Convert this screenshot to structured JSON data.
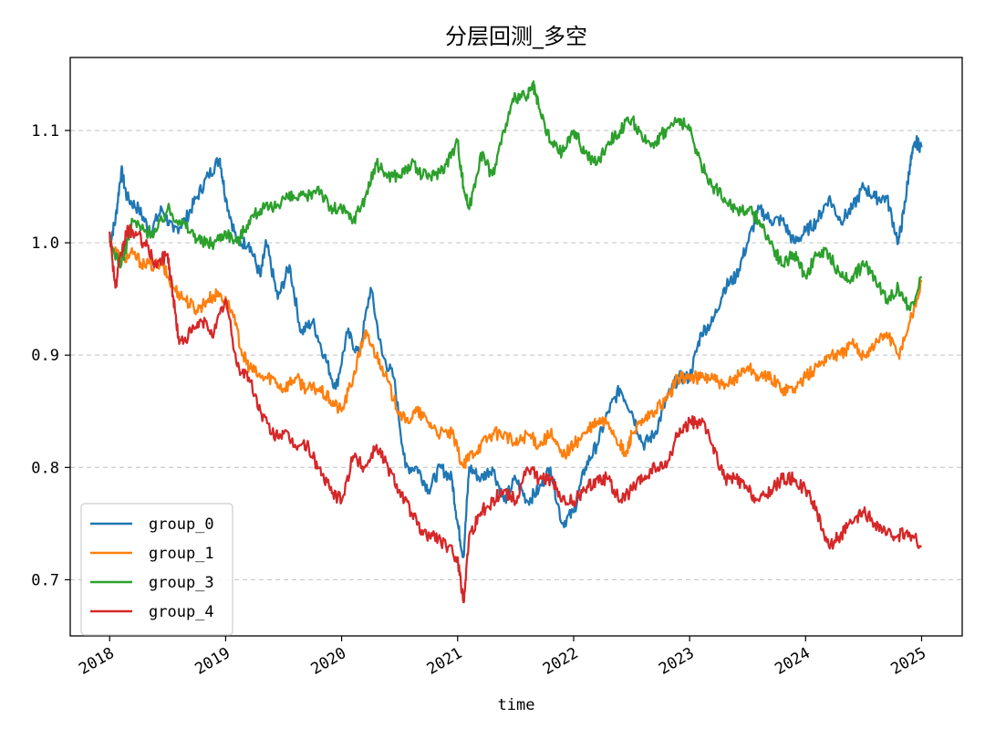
{
  "chart_data": {
    "type": "line",
    "title": "分层回测_多空",
    "xlabel": "time",
    "ylabel": "",
    "xlim": [
      2017.66,
      2025.35
    ],
    "ylim": [
      0.65,
      1.165
    ],
    "x_ticks": [
      2018,
      2019,
      2020,
      2021,
      2022,
      2023,
      2024,
      2025
    ],
    "x_tick_labels": [
      "2018",
      "2019",
      "2020",
      "2021",
      "2022",
      "2023",
      "2024",
      "2025"
    ],
    "y_ticks": [
      0.7,
      0.8,
      0.9,
      1.0,
      1.1
    ],
    "y_tick_labels": [
      "0.7",
      "0.8",
      "0.9",
      "1.0",
      "1.1"
    ],
    "grid": "horizontal-dashed",
    "legend_position": "lower-left",
    "series": [
      {
        "name": "group_0",
        "color": "#1f77b4",
        "x": [
          2018.0,
          2018.05,
          2018.1,
          2018.15,
          2018.25,
          2018.35,
          2018.45,
          2018.55,
          2018.65,
          2018.75,
          2018.85,
          2018.95,
          2019.0,
          2019.1,
          2019.2,
          2019.3,
          2019.35,
          2019.45,
          2019.55,
          2019.65,
          2019.75,
          2019.85,
          2019.95,
          2020.05,
          2020.15,
          2020.25,
          2020.35,
          2020.45,
          2020.55,
          2020.65,
          2020.75,
          2020.85,
          2020.95,
          2021.0,
          2021.05,
          2021.1,
          2021.2,
          2021.3,
          2021.4,
          2021.5,
          2021.6,
          2021.7,
          2021.8,
          2021.9,
          2022.0,
          2022.1,
          2022.2,
          2022.3,
          2022.4,
          2022.5,
          2022.6,
          2022.7,
          2022.8,
          2022.9,
          2023.0,
          2023.1,
          2023.2,
          2023.3,
          2023.4,
          2023.5,
          2023.6,
          2023.7,
          2023.8,
          2023.9,
          2024.0,
          2024.1,
          2024.2,
          2024.3,
          2024.4,
          2024.5,
          2024.6,
          2024.7,
          2024.8,
          2024.85,
          2024.9,
          2024.95,
          2025.0
        ],
        "values": [
          1.0,
          1.02,
          1.065,
          1.04,
          1.03,
          1.01,
          1.03,
          1.01,
          1.02,
          1.04,
          1.06,
          1.075,
          1.04,
          1.0,
          1.0,
          0.97,
          1.0,
          0.95,
          0.98,
          0.92,
          0.93,
          0.9,
          0.87,
          0.92,
          0.9,
          0.96,
          0.9,
          0.88,
          0.8,
          0.8,
          0.78,
          0.8,
          0.79,
          0.75,
          0.72,
          0.8,
          0.79,
          0.8,
          0.77,
          0.79,
          0.77,
          0.78,
          0.8,
          0.75,
          0.76,
          0.8,
          0.82,
          0.85,
          0.87,
          0.85,
          0.82,
          0.83,
          0.86,
          0.88,
          0.88,
          0.92,
          0.93,
          0.96,
          0.97,
          1.0,
          1.03,
          1.02,
          1.02,
          1.0,
          1.01,
          1.02,
          1.04,
          1.02,
          1.03,
          1.05,
          1.04,
          1.04,
          1.0,
          1.03,
          1.07,
          1.09,
          1.085
        ]
      },
      {
        "name": "group_1",
        "color": "#ff7f0e",
        "x": [
          2018.0,
          2018.1,
          2018.2,
          2018.3,
          2018.45,
          2018.55,
          2018.65,
          2018.75,
          2018.85,
          2018.95,
          2019.05,
          2019.15,
          2019.2,
          2019.3,
          2019.4,
          2019.5,
          2019.6,
          2019.7,
          2019.8,
          2019.9,
          2020.0,
          2020.1,
          2020.2,
          2020.25,
          2020.35,
          2020.45,
          2020.55,
          2020.65,
          2020.75,
          2020.85,
          2020.95,
          2021.05,
          2021.1,
          2021.2,
          2021.3,
          2021.4,
          2021.5,
          2021.6,
          2021.7,
          2021.8,
          2021.9,
          2022.0,
          2022.1,
          2022.2,
          2022.3,
          2022.4,
          2022.45,
          2022.5,
          2022.6,
          2022.7,
          2022.8,
          2022.9,
          2023.0,
          2023.1,
          2023.2,
          2023.3,
          2023.4,
          2023.5,
          2023.6,
          2023.7,
          2023.8,
          2023.9,
          2024.0,
          2024.1,
          2024.2,
          2024.3,
          2024.4,
          2024.5,
          2024.6,
          2024.7,
          2024.8,
          2024.9,
          2025.0
        ],
        "values": [
          1.0,
          0.985,
          0.99,
          0.98,
          0.98,
          0.96,
          0.95,
          0.94,
          0.95,
          0.955,
          0.94,
          0.9,
          0.89,
          0.88,
          0.88,
          0.87,
          0.88,
          0.87,
          0.87,
          0.86,
          0.85,
          0.88,
          0.92,
          0.91,
          0.89,
          0.86,
          0.84,
          0.85,
          0.84,
          0.83,
          0.83,
          0.8,
          0.81,
          0.82,
          0.83,
          0.83,
          0.82,
          0.83,
          0.82,
          0.83,
          0.81,
          0.82,
          0.83,
          0.84,
          0.84,
          0.82,
          0.81,
          0.83,
          0.84,
          0.85,
          0.86,
          0.88,
          0.88,
          0.88,
          0.88,
          0.87,
          0.88,
          0.89,
          0.88,
          0.88,
          0.87,
          0.87,
          0.88,
          0.89,
          0.9,
          0.9,
          0.91,
          0.9,
          0.91,
          0.92,
          0.9,
          0.93,
          0.965
        ]
      },
      {
        "name": "group_3",
        "color": "#2ca02c",
        "x": [
          2018.0,
          2018.1,
          2018.2,
          2018.3,
          2018.4,
          2018.5,
          2018.6,
          2018.7,
          2018.8,
          2018.9,
          2019.0,
          2019.1,
          2019.2,
          2019.3,
          2019.4,
          2019.5,
          2019.6,
          2019.7,
          2019.8,
          2019.9,
          2020.0,
          2020.1,
          2020.2,
          2020.3,
          2020.4,
          2020.5,
          2020.6,
          2020.7,
          2020.8,
          2020.9,
          2021.0,
          2021.05,
          2021.1,
          2021.2,
          2021.3,
          2021.4,
          2021.5,
          2021.6,
          2021.65,
          2021.7,
          2021.8,
          2021.9,
          2022.0,
          2022.1,
          2022.2,
          2022.3,
          2022.4,
          2022.5,
          2022.6,
          2022.7,
          2022.8,
          2022.9,
          2023.0,
          2023.1,
          2023.2,
          2023.3,
          2023.4,
          2023.5,
          2023.6,
          2023.7,
          2023.8,
          2023.9,
          2024.0,
          2024.1,
          2024.2,
          2024.3,
          2024.4,
          2024.5,
          2024.6,
          2024.7,
          2024.8,
          2024.9,
          2025.0
        ],
        "values": [
          1.0,
          0.98,
          1.02,
          1.01,
          1.01,
          1.03,
          1.02,
          1.01,
          1.0,
          1.0,
          1.01,
          1.0,
          1.02,
          1.03,
          1.03,
          1.04,
          1.04,
          1.04,
          1.05,
          1.03,
          1.03,
          1.02,
          1.04,
          1.07,
          1.06,
          1.06,
          1.07,
          1.06,
          1.06,
          1.07,
          1.09,
          1.05,
          1.03,
          1.08,
          1.06,
          1.1,
          1.13,
          1.13,
          1.14,
          1.12,
          1.09,
          1.08,
          1.1,
          1.08,
          1.07,
          1.09,
          1.1,
          1.11,
          1.09,
          1.09,
          1.1,
          1.11,
          1.1,
          1.07,
          1.05,
          1.04,
          1.03,
          1.03,
          1.02,
          1.0,
          0.98,
          0.99,
          0.97,
          0.99,
          0.99,
          0.97,
          0.97,
          0.98,
          0.97,
          0.95,
          0.96,
          0.94,
          0.97
        ]
      },
      {
        "name": "group_4",
        "color": "#d62728",
        "x": [
          2018.0,
          2018.05,
          2018.1,
          2018.15,
          2018.2,
          2018.3,
          2018.4,
          2018.5,
          2018.55,
          2018.6,
          2018.7,
          2018.8,
          2018.9,
          2019.0,
          2019.1,
          2019.2,
          2019.3,
          2019.4,
          2019.5,
          2019.6,
          2019.7,
          2019.8,
          2019.9,
          2020.0,
          2020.1,
          2020.2,
          2020.3,
          2020.4,
          2020.5,
          2020.6,
          2020.7,
          2020.8,
          2020.9,
          2021.0,
          2021.05,
          2021.1,
          2021.2,
          2021.3,
          2021.4,
          2021.5,
          2021.6,
          2021.7,
          2021.8,
          2021.9,
          2022.0,
          2022.1,
          2022.2,
          2022.3,
          2022.4,
          2022.5,
          2022.6,
          2022.7,
          2022.8,
          2022.9,
          2023.0,
          2023.1,
          2023.2,
          2023.3,
          2023.4,
          2023.5,
          2023.6,
          2023.7,
          2023.8,
          2023.9,
          2024.0,
          2024.1,
          2024.2,
          2024.3,
          2024.4,
          2024.5,
          2024.6,
          2024.7,
          2024.8,
          2024.9,
          2025.0
        ],
        "values": [
          1.01,
          0.96,
          0.99,
          1.01,
          1.01,
          1.0,
          0.98,
          0.99,
          0.95,
          0.91,
          0.92,
          0.93,
          0.92,
          0.95,
          0.89,
          0.88,
          0.85,
          0.83,
          0.83,
          0.82,
          0.82,
          0.8,
          0.78,
          0.77,
          0.81,
          0.8,
          0.82,
          0.8,
          0.78,
          0.76,
          0.74,
          0.74,
          0.73,
          0.72,
          0.68,
          0.74,
          0.76,
          0.77,
          0.78,
          0.77,
          0.8,
          0.79,
          0.79,
          0.77,
          0.77,
          0.78,
          0.79,
          0.79,
          0.77,
          0.78,
          0.79,
          0.8,
          0.8,
          0.83,
          0.84,
          0.84,
          0.82,
          0.79,
          0.79,
          0.78,
          0.77,
          0.78,
          0.79,
          0.79,
          0.78,
          0.76,
          0.73,
          0.74,
          0.75,
          0.76,
          0.75,
          0.74,
          0.74,
          0.74,
          0.73
        ]
      }
    ]
  }
}
